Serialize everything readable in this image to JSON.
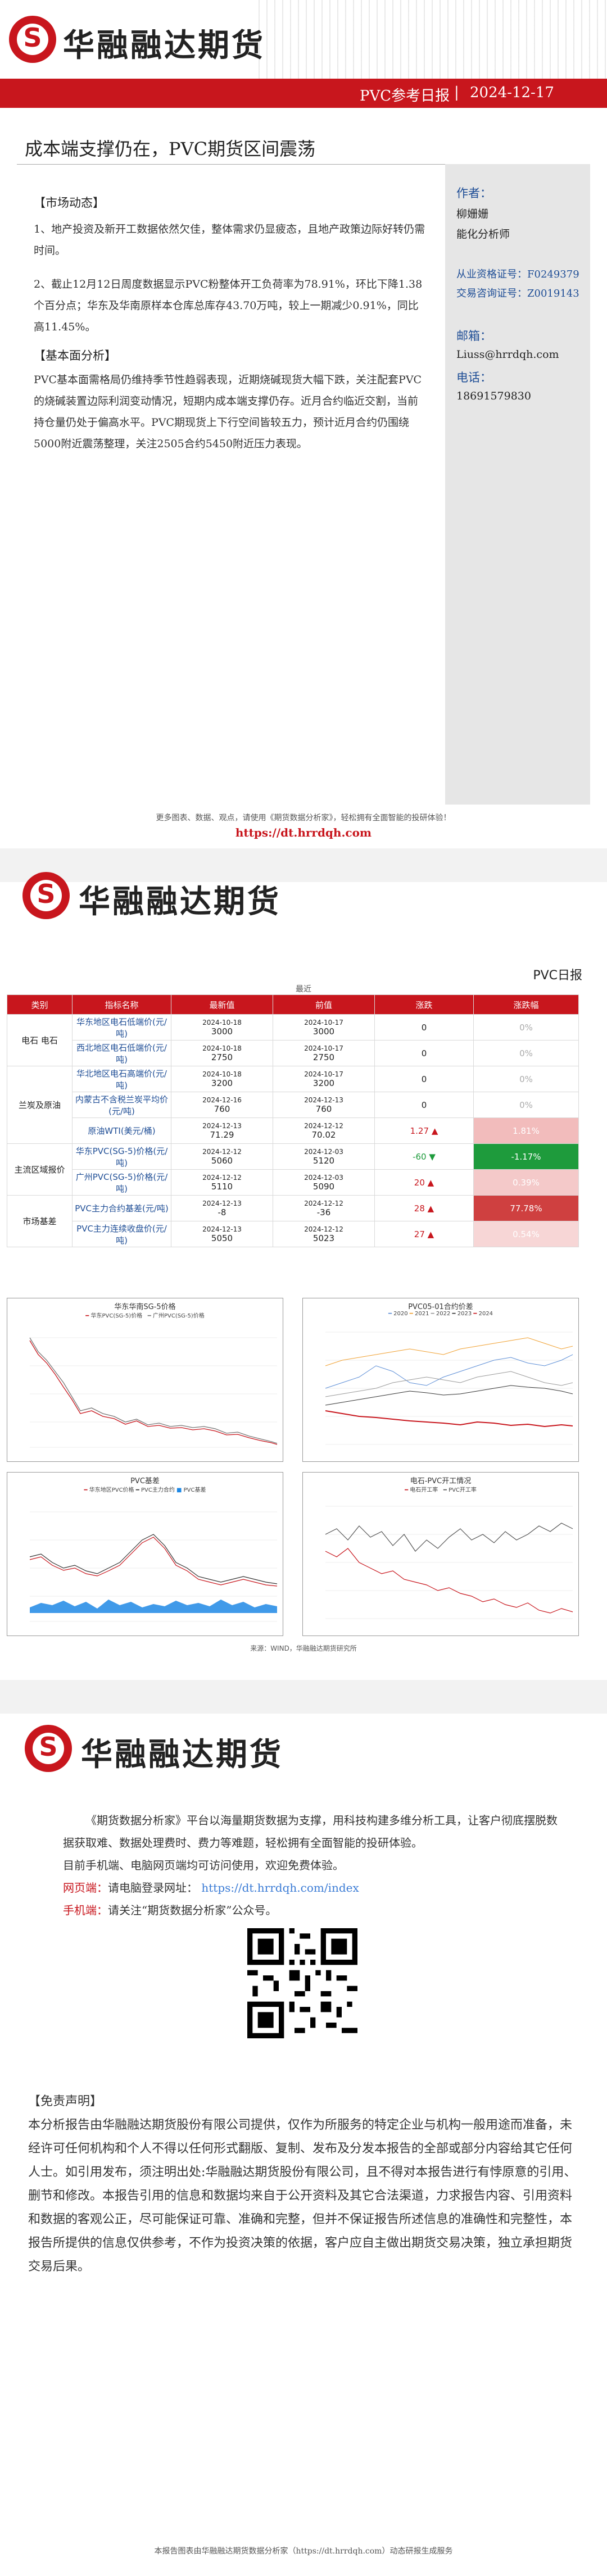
{
  "brand": {
    "name": "华融融达期货",
    "logo_letter": "S"
  },
  "page1": {
    "report_type": "PVC参考日报",
    "date": "2024-12-17",
    "title": "成本端支撑仍在，PVC期货区间震荡",
    "sections": [
      {
        "heading": "【市场动态】",
        "paras": [
          "1、地产投资及新开工数据依然欠佳，整体需求仍显疲态，且地产政策边际好转仍需时间。",
          "2、截止12月12日周度数据显示PVC粉整体开工负荷率为78.91%，环比下降1.38个百分点；华东及华南原样本仓库总库存43.70万吨，较上一期减少0.91%，同比高11.45%。"
        ]
      },
      {
        "heading": "【基本面分析】",
        "paras": [
          "PVC基本面需格局仍维持季节性趋弱表现，近期烧碱现货大幅下跌，关注配套PVC的烧碱装置边际利润变动情况，短期内成本端支撑仍存。近月合约临近交割，当前持仓量仍处于偏高水平。PVC期现货上下行空间皆较五力，预计近月合约仍围绕5000附近震荡整理，关注2505合约5450附近压力表现。"
        ]
      }
    ],
    "sidebar": {
      "author_label": "作者：",
      "author": "柳姗姗",
      "author_title": "能化分析师",
      "cert1": "从业资格证号：F0249379",
      "cert2": "交易咨询证号：Z0019143",
      "email_label": "邮箱：",
      "email": "Liuss@hrrdqh.com",
      "phone_label": "电话：",
      "phone": "18691579830"
    },
    "footer_note": "更多图表、数据、观点，请使用《期货数据分析家》，轻松拥有全面智能的投研体验！",
    "footer_link": "https://dt.hrrdqh.com"
  },
  "page2": {
    "corner_label": "PVC日报",
    "table_title": "最近",
    "headers": [
      "类别",
      "指标名称",
      "最新值",
      "前值",
      "涨跌",
      "涨跌幅"
    ],
    "groups": [
      {
        "name": "电石 电石",
        "rows": [
          {
            "name": "华东地区电石低端价(元/吨)",
            "latest_date": "2024-10-18",
            "latest": "3000",
            "prev_date": "2024-10-17",
            "prev": "3000",
            "chg": "0",
            "chg_arrow": "",
            "pct": "0%",
            "pct_bg": "#ffffff",
            "pct_color": "#aaaaaa"
          },
          {
            "name": "西北地区电石低端价(元/吨)",
            "latest_date": "2024-10-18",
            "latest": "2750",
            "prev_date": "2024-10-17",
            "prev": "2750",
            "chg": "0",
            "chg_arrow": "",
            "pct": "0%",
            "pct_bg": "#ffffff",
            "pct_color": "#aaaaaa"
          }
        ]
      },
      {
        "name": "兰炭及原油",
        "rows": [
          {
            "name": "华北地区电石高端价(元/吨)",
            "latest_date": "2024-10-18",
            "latest": "3200",
            "prev_date": "2024-10-17",
            "prev": "3200",
            "chg": "0",
            "chg_arrow": "",
            "pct": "0%",
            "pct_bg": "#ffffff",
            "pct_color": "#aaaaaa"
          },
          {
            "name": "内蒙古不含税兰炭平均价(元/吨)",
            "latest_date": "2024-12-16",
            "latest": "760",
            "prev_date": "2024-12-13",
            "prev": "760",
            "chg": "0",
            "chg_arrow": "",
            "pct": "0%",
            "pct_bg": "#ffffff",
            "pct_color": "#aaaaaa"
          },
          {
            "name": "原油WTI(美元/桶)",
            "latest_date": "2024-12-13",
            "latest": "71.29",
            "prev_date": "2024-12-12",
            "prev": "70.02",
            "chg": "1.27",
            "chg_arrow": "▲",
            "pct": "1.81%",
            "pct_bg": "#f2bcbc",
            "pct_color": "#ffffff"
          }
        ]
      },
      {
        "name": "主流区域报价",
        "rows": [
          {
            "name": "华东PVC(SG-5)价格(元/吨)",
            "latest_date": "2024-12-12",
            "latest": "5060",
            "prev_date": "2024-12-03",
            "prev": "5120",
            "chg": "-60",
            "chg_arrow": "▼",
            "pct": "-1.17%",
            "pct_bg": "#1e9b3c",
            "pct_color": "#ffffff"
          },
          {
            "name": "广州PVC(SG-5)价格(元/吨)",
            "latest_date": "2024-12-12",
            "latest": "5110",
            "prev_date": "2024-12-03",
            "prev": "5090",
            "chg": "20",
            "chg_arrow": "▲",
            "pct": "0.39%",
            "pct_bg": "#f4c9c9",
            "pct_color": "#ffffff"
          }
        ]
      },
      {
        "name": "市场基差",
        "rows": [
          {
            "name": "PVC主力合约基差(元/吨)",
            "latest_date": "2024-12-13",
            "latest": "-8",
            "prev_date": "2024-12-12",
            "prev": "-36",
            "chg": "28",
            "chg_arrow": "▲",
            "pct": "77.78%",
            "pct_bg": "#cf4040",
            "pct_color": "#ffffff"
          },
          {
            "name": "PVC主力连续收盘价(元/吨)",
            "latest_date": "2024-12-13",
            "latest": "5050",
            "prev_date": "2024-12-12",
            "prev": "5023",
            "chg": "27",
            "chg_arrow": "▲",
            "pct": "0.54%",
            "pct_bg": "#f7d6d6",
            "pct_color": "#ffffff"
          }
        ]
      }
    ],
    "charts": [
      {
        "title": "华东华南SG-5价格",
        "legend": [
          "华东PVC(SG-5)价格",
          "广州PVC(SG-5)价格"
        ]
      },
      {
        "title": "PVC05-01合约价差",
        "legend": [
          "2020",
          "2021",
          "2022",
          "2023",
          "2024"
        ]
      },
      {
        "title": "PVC基差",
        "legend": [
          "华东地区PVC价格",
          "PVC主力合约",
          "PVC基差"
        ]
      },
      {
        "title": "电石-PVC开工情况",
        "legend": [
          "电石开工率",
          "PVC开工率"
        ]
      }
    ],
    "source": "来源：WIND，华融融达期货研究所"
  },
  "page3": {
    "intro": "《期货数据分析家》平台以海量期货数据为支撑，用科技构建多维分析工具，让客户彻底摆脱数据获取难、数据处理费时、费力等难题，轻松拥有全面智能的投研体验。",
    "line2": "目前手机端、电脑网页端均可访问使用，欢迎免费体验。",
    "web_label": "网页端：",
    "web_text": "请电脑登录网址：",
    "web_url": "https://dt.hrrdqh.com/index",
    "app_label": "手机端：",
    "app_text": "请关注“期货数据分析家”公众号。",
    "disclaimer_heading": "【免责声明】",
    "disclaimer": "本分析报告由华融融达期货股份有限公司提供，仅作为所服务的特定企业与机构一般用途而准备，未经许可任何机构和个人不得以任何形式翻版、复制、发布及分发本报告的全部或部分内容给其它任何人士。如引用发布，须注明出处:华融融达期货股份有限公司，且不得对本报告进行有悖原意的引用、删节和修改。本报告引用的信息和数据均来自于公开资料及其它合法渠道，力求报告内容、引用资料和数据的客观公正，尽可能保证可靠、准确和完整，但并不保证报告所述信息的准确性和完整性，本报告所提供的信息仅供参考，不作为投资决策的依据，客户应自主做出期货交易决策，独立承担期货交易后果。",
    "footer": "本报告图表由华融融达期货数据分析家（https://dt.hrrdqh.com）动态研报生成服务"
  }
}
